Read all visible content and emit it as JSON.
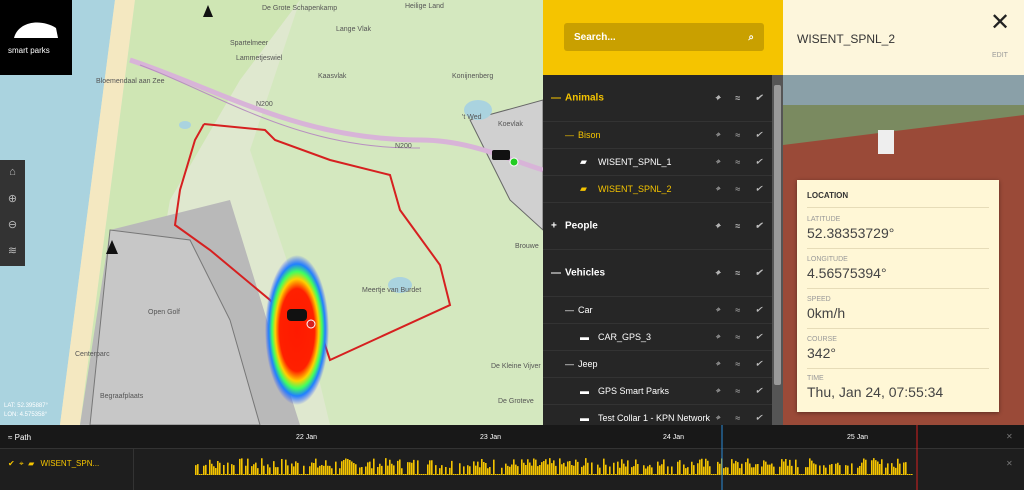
{
  "logo": "smart parks",
  "map": {
    "labels": [
      "De Grote Schapenkamp",
      "Heilige Land",
      "Spartelmeer",
      "Lammetjeswiel",
      "Lange Vlak",
      "Kaasvlak",
      "Bloemendaal aan Zee",
      "Konijnenberg",
      "'t Wed",
      "Koevlak",
      "N200",
      "N200",
      "Meertje van Burdet",
      "Open Golf",
      "Centerparc",
      "Begraafplaats",
      "Brouwe",
      "De Kleine Vijver",
      "De Groteve"
    ],
    "lat": "LAT: 52.395887°",
    "lon": "LON: 4.575358°"
  },
  "sidebar": {
    "search": "Search...",
    "tree": [
      "Animals",
      "Bison",
      "WISENT_SPNL_1",
      "WISENT_SPNL_2",
      "People",
      "Vehicles",
      "Car",
      "CAR_GPS_3",
      "Jeep",
      "GPS Smart Parks",
      "Test Collar 1 - KPN Network"
    ]
  },
  "detail": {
    "title": "WISENT_SPNL_2",
    "edit": "EDIT",
    "heading": "LOCATION",
    "fields": [
      {
        "label": "LATITUDE",
        "value": "52.38353729°"
      },
      {
        "label": "LONGITUDE",
        "value": "4.56575394°"
      },
      {
        "label": "SPEED",
        "value": "0km/h"
      },
      {
        "label": "COURSE",
        "value": "342°"
      },
      {
        "label": "TIME",
        "value": "Thu, Jan 24, 07:55:34"
      }
    ]
  },
  "timeline": {
    "header": "Path",
    "dates": [
      "22 Jan",
      "23 Jan",
      "24 Jan",
      "25 Jan"
    ],
    "track": "WISENT_SPN..."
  }
}
